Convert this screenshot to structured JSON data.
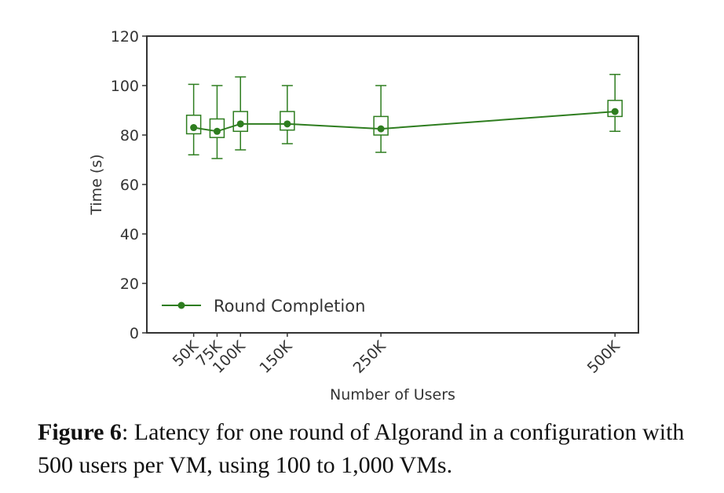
{
  "chart_data": {
    "type": "line",
    "title": "",
    "xlabel": "Number of Users",
    "ylabel": "Time (s)",
    "ylim": [
      0,
      120
    ],
    "yticks": [
      0,
      20,
      40,
      60,
      80,
      100,
      120
    ],
    "x_tick_labels": [
      "50K",
      "75K",
      "100K",
      "150K",
      "250K",
      "500K"
    ],
    "x_values": [
      50,
      75,
      100,
      150,
      250,
      500
    ],
    "grid": false,
    "legend": {
      "position": "lower-left"
    },
    "color": "#2e7d1f",
    "series": [
      {
        "name": "Round Completion",
        "values": [
          83,
          81.5,
          84.5,
          84.5,
          82.5,
          89.5
        ],
        "box_low": [
          80.5,
          79,
          81.5,
          82,
          80,
          87.5
        ],
        "box_high": [
          88,
          86.5,
          89.5,
          89.5,
          87.5,
          94
        ],
        "whisker_low": [
          72,
          70.5,
          74,
          76.5,
          73,
          81.5
        ],
        "whisker_high": [
          100.5,
          100,
          103.5,
          100,
          100,
          104.5
        ]
      }
    ]
  },
  "caption": {
    "label": "Figure 6",
    "text": ": Latency for one round of Algorand in a configuration with 500 users per VM, using 100 to 1,000 VMs."
  }
}
